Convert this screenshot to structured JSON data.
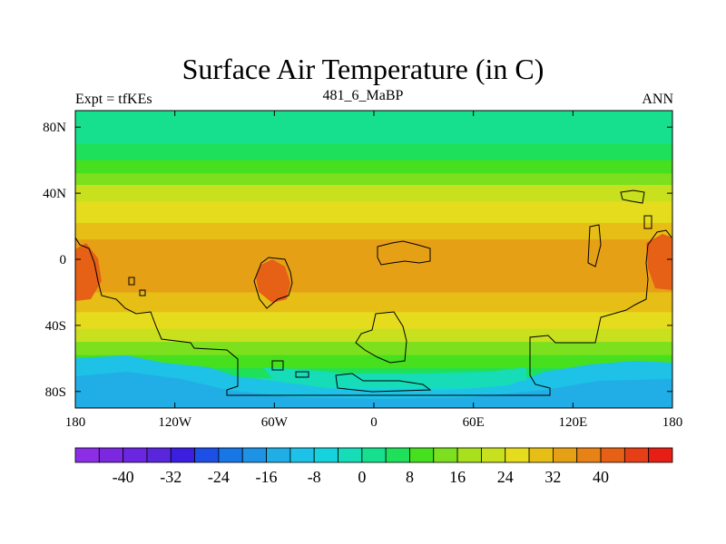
{
  "title": "Surface Air Temperature (in C)",
  "subtitle_left": "Expt = tfKEs",
  "subtitle_center": "481_6_MaBP",
  "subtitle_right": "ANN",
  "lon_ticks": [
    "180",
    "120W",
    "60W",
    "0",
    "60E",
    "120E",
    "180"
  ],
  "lat_ticks": [
    "80N",
    "40N",
    "0",
    "40S",
    "80S"
  ],
  "colorbar": {
    "colors": [
      "#8b2ee6",
      "#7b28e0",
      "#6a26e0",
      "#5a26dc",
      "#3b1fe0",
      "#1d4fe6",
      "#1876e6",
      "#1e93e6",
      "#21aee6",
      "#1ec2e6",
      "#16d2dc",
      "#16dcb8",
      "#16e08e",
      "#1ee05a",
      "#46e01e",
      "#7ce01e",
      "#a8e01e",
      "#c8e01e",
      "#e6dc1e",
      "#e6be16",
      "#e6a016",
      "#e68216",
      "#e66016",
      "#e63e16",
      "#e61e16"
    ],
    "labels": [
      "-40",
      "-32",
      "-24",
      "-16",
      "-8",
      "0",
      "8",
      "16",
      "24",
      "32",
      "40"
    ]
  },
  "map_bands": [
    {
      "lat": 90,
      "color": "#16e08e"
    },
    {
      "lat": 70,
      "color": "#1ee05a"
    },
    {
      "lat": 60,
      "color": "#46e01e"
    },
    {
      "lat": 52,
      "color": "#7ce01e"
    },
    {
      "lat": 45,
      "color": "#c8e01e"
    },
    {
      "lat": 35,
      "color": "#e6dc1e"
    },
    {
      "lat": 22,
      "color": "#e6be16"
    },
    {
      "lat": 12,
      "color": "#e6a016"
    },
    {
      "lat": -20,
      "color": "#e6be16"
    },
    {
      "lat": -32,
      "color": "#e6dc1e"
    },
    {
      "lat": -42,
      "color": "#c8e01e"
    },
    {
      "lat": -50,
      "color": "#7ce01e"
    },
    {
      "lat": -58,
      "color": "#46e01e"
    },
    {
      "lat": -66,
      "color": "#1ee05a"
    },
    {
      "lat": -72,
      "color": "#16dcb8"
    },
    {
      "lat": -78,
      "color": "#16d2dc"
    },
    {
      "lat": -84,
      "color": "#1ec2e6"
    }
  ]
}
